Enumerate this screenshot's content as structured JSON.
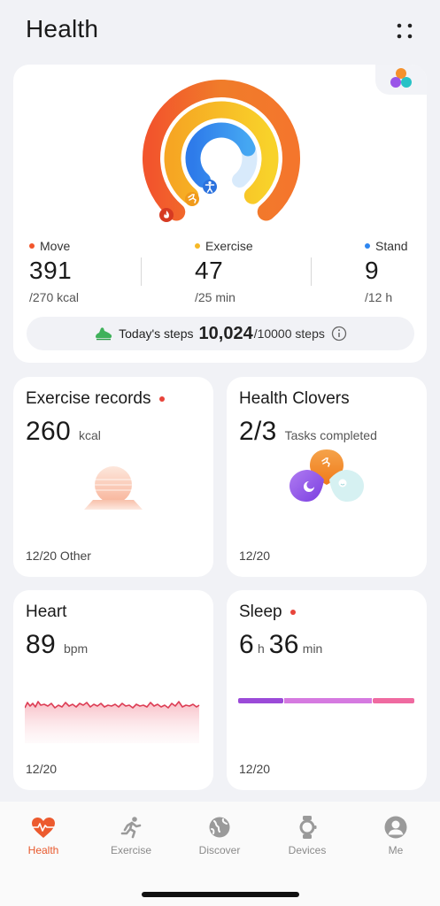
{
  "header": {
    "title": "Health"
  },
  "rings": {
    "move": {
      "label": "Move",
      "value": "391",
      "goal": "/270 kcal",
      "color": "#f2552c",
      "fraction": 1.0
    },
    "exercise": {
      "label": "Exercise",
      "value": "47",
      "goal": "/25 min",
      "color": "#f6b826",
      "fraction": 1.0
    },
    "stand": {
      "label": "Stand",
      "value": "9",
      "goal": "/12 h",
      "color": "#2e86f0",
      "fraction": 0.75
    },
    "steps_label": "Today's steps",
    "steps_value": "10,024",
    "steps_goal": "/10000 steps"
  },
  "exercise_records": {
    "title": "Exercise records",
    "value": "260",
    "unit": "kcal",
    "footer": "12/20 Other"
  },
  "health_clovers": {
    "title": "Health Clovers",
    "value": "2/3",
    "unit": "Tasks completed",
    "footer": "12/20"
  },
  "heart": {
    "title": "Heart",
    "value": "89",
    "unit": "bpm",
    "footer": "12/20",
    "color": "#e0425a"
  },
  "sleep": {
    "title": "Sleep",
    "hours": "6",
    "hours_unit": "h",
    "minutes": "36",
    "minutes_unit": "min",
    "footer": "12/20"
  },
  "tabs": [
    {
      "label": "Health",
      "icon": "heart-rate-icon",
      "active": true
    },
    {
      "label": "Exercise",
      "icon": "running-icon",
      "active": false
    },
    {
      "label": "Discover",
      "icon": "globe-icon",
      "active": false
    },
    {
      "label": "Devices",
      "icon": "watch-icon",
      "active": false
    },
    {
      "label": "Me",
      "icon": "person-icon",
      "active": false
    }
  ]
}
